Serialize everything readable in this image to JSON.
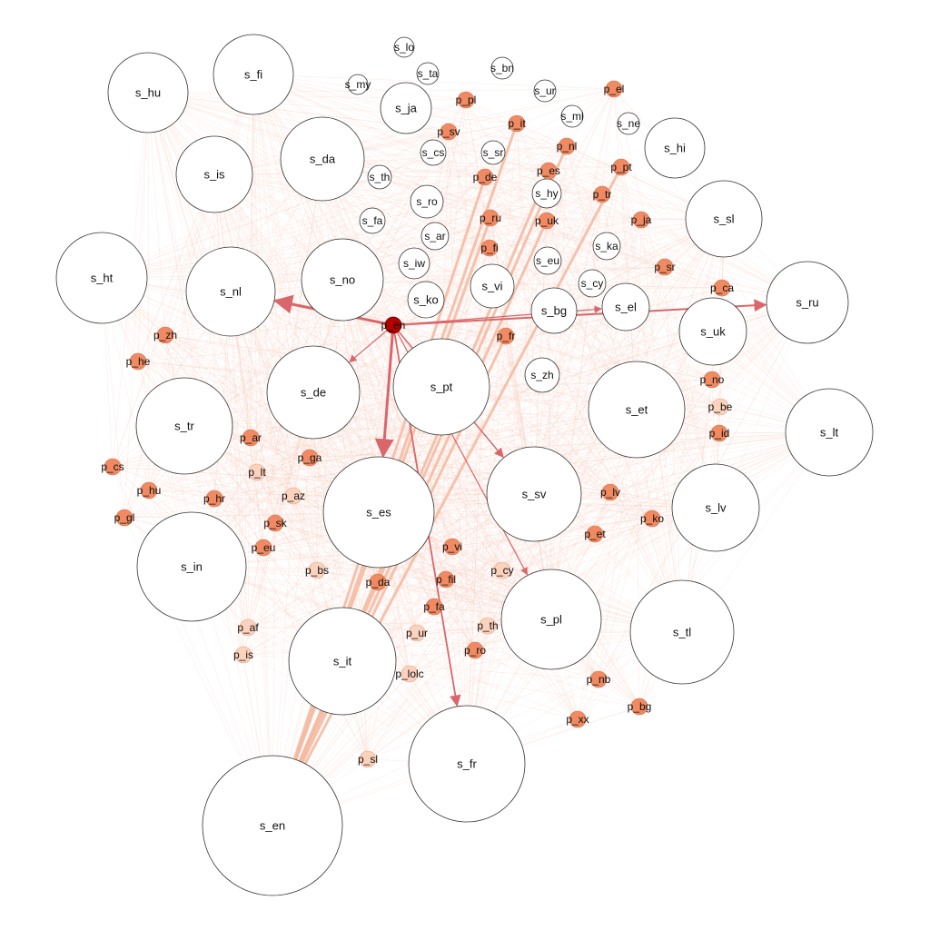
{
  "colors": {
    "background": "#ffffff",
    "s_fill": "#ffffff",
    "s_stroke": "#333333",
    "edge_faint": "#f6c3b1",
    "edge_strong": "#d9666b",
    "center_fill": "#b30000",
    "p_strong": "#ef8a62",
    "p_light": "#fbd2bd"
  },
  "nodes": [
    {
      "id": "s_en",
      "label": "s_en",
      "kind": "s"
    },
    {
      "id": "s_fr",
      "label": "s_fr",
      "kind": "s"
    },
    {
      "id": "s_it",
      "label": "s_it",
      "kind": "s"
    },
    {
      "id": "s_in",
      "label": "s_in",
      "kind": "s"
    },
    {
      "id": "s_es",
      "label": "s_es",
      "kind": "s"
    },
    {
      "id": "s_pl",
      "label": "s_pl",
      "kind": "s"
    },
    {
      "id": "s_tl",
      "label": "s_tl",
      "kind": "s"
    },
    {
      "id": "s_sv",
      "label": "s_sv",
      "kind": "s"
    },
    {
      "id": "s_lv",
      "label": "s_lv",
      "kind": "s"
    },
    {
      "id": "s_tr",
      "label": "s_tr",
      "kind": "s"
    },
    {
      "id": "s_de",
      "label": "s_de",
      "kind": "s"
    },
    {
      "id": "s_pt",
      "label": "s_pt",
      "kind": "s"
    },
    {
      "id": "s_et",
      "label": "s_et",
      "kind": "s"
    },
    {
      "id": "s_lt",
      "label": "s_lt",
      "kind": "s"
    },
    {
      "id": "s_ht",
      "label": "s_ht",
      "kind": "s"
    },
    {
      "id": "s_nl",
      "label": "s_nl",
      "kind": "s"
    },
    {
      "id": "s_no",
      "label": "s_no",
      "kind": "s"
    },
    {
      "id": "s_ru",
      "label": "s_ru",
      "kind": "s"
    },
    {
      "id": "s_uk",
      "label": "s_uk",
      "kind": "s"
    },
    {
      "id": "s_sl",
      "label": "s_sl",
      "kind": "s"
    },
    {
      "id": "s_hi",
      "label": "s_hi",
      "kind": "s"
    },
    {
      "id": "s_hu",
      "label": "s_hu",
      "kind": "s"
    },
    {
      "id": "s_fi",
      "label": "s_fi",
      "kind": "s"
    },
    {
      "id": "s_is",
      "label": "s_is",
      "kind": "s"
    },
    {
      "id": "s_da",
      "label": "s_da",
      "kind": "s"
    },
    {
      "id": "s_ja",
      "label": "s_ja",
      "kind": "s"
    },
    {
      "id": "s_vi",
      "label": "s_vi",
      "kind": "s"
    },
    {
      "id": "s_bg",
      "label": "s_bg",
      "kind": "s"
    },
    {
      "id": "s_el",
      "label": "s_el",
      "kind": "s"
    },
    {
      "id": "s_zh",
      "label": "s_zh",
      "kind": "s"
    },
    {
      "id": "s_ro",
      "label": "s_ro",
      "kind": "s"
    },
    {
      "id": "s_ar",
      "label": "s_ar",
      "kind": "s"
    },
    {
      "id": "s_iw",
      "label": "s_iw",
      "kind": "s"
    },
    {
      "id": "s_ko",
      "label": "s_ko",
      "kind": "s"
    },
    {
      "id": "s_fa",
      "label": "s_fa",
      "kind": "s"
    },
    {
      "id": "s_th",
      "label": "s_th",
      "kind": "s"
    },
    {
      "id": "s_cs",
      "label": "s_cs",
      "kind": "s"
    },
    {
      "id": "s_sr",
      "label": "s_sr",
      "kind": "s"
    },
    {
      "id": "s_hy",
      "label": "s_hy",
      "kind": "s"
    },
    {
      "id": "s_eu",
      "label": "s_eu",
      "kind": "s"
    },
    {
      "id": "s_ka",
      "label": "s_ka",
      "kind": "s"
    },
    {
      "id": "s_cy",
      "label": "s_cy",
      "kind": "s"
    },
    {
      "id": "s_lo",
      "label": "s_lo",
      "kind": "s"
    },
    {
      "id": "s_ta",
      "label": "s_ta",
      "kind": "s"
    },
    {
      "id": "s_bn",
      "label": "s_bn",
      "kind": "s"
    },
    {
      "id": "s_my",
      "label": "s_my",
      "kind": "s"
    },
    {
      "id": "s_ur",
      "label": "s_ur",
      "kind": "s"
    },
    {
      "id": "s_ml",
      "label": "s_ml",
      "kind": "s"
    },
    {
      "id": "s_ne",
      "label": "s_ne",
      "kind": "s"
    },
    {
      "id": "p_en",
      "label": "p_en",
      "kind": "center"
    },
    {
      "id": "p_pl",
      "label": "p_pl",
      "kind": "p"
    },
    {
      "id": "p_el",
      "label": "p_el",
      "kind": "p"
    },
    {
      "id": "p_sv",
      "label": "p_sv",
      "kind": "p"
    },
    {
      "id": "p_it",
      "label": "p_it",
      "kind": "p"
    },
    {
      "id": "p_nl",
      "label": "p_nl",
      "kind": "p"
    },
    {
      "id": "p_es",
      "label": "p_es",
      "kind": "p"
    },
    {
      "id": "p_de",
      "label": "p_de",
      "kind": "p"
    },
    {
      "id": "p_pt",
      "label": "p_pt",
      "kind": "p"
    },
    {
      "id": "p_tr",
      "label": "p_tr",
      "kind": "p"
    },
    {
      "id": "p_ru",
      "label": "p_ru",
      "kind": "p"
    },
    {
      "id": "p_uk",
      "label": "p_uk",
      "kind": "p"
    },
    {
      "id": "p_ja",
      "label": "p_ja",
      "kind": "p"
    },
    {
      "id": "p_fi",
      "label": "p_fi",
      "kind": "p"
    },
    {
      "id": "p_sr",
      "label": "p_sr",
      "kind": "p"
    },
    {
      "id": "p_ca",
      "label": "p_ca",
      "kind": "p"
    },
    {
      "id": "p_fr",
      "label": "p_fr",
      "kind": "p"
    },
    {
      "id": "p_zh",
      "label": "p_zh",
      "kind": "p"
    },
    {
      "id": "p_he",
      "label": "p_he",
      "kind": "p"
    },
    {
      "id": "p_no",
      "label": "p_no",
      "kind": "p"
    },
    {
      "id": "p_be",
      "label": "p_be",
      "kind": "pl"
    },
    {
      "id": "p_id",
      "label": "p_id",
      "kind": "p"
    },
    {
      "id": "p_ar",
      "label": "p_ar",
      "kind": "p"
    },
    {
      "id": "p_ga",
      "label": "p_ga",
      "kind": "p"
    },
    {
      "id": "p_cs",
      "label": "p_cs",
      "kind": "p"
    },
    {
      "id": "p_lt",
      "label": "p_lt",
      "kind": "pl"
    },
    {
      "id": "p_hu",
      "label": "p_hu",
      "kind": "p"
    },
    {
      "id": "p_hr",
      "label": "p_hr",
      "kind": "p"
    },
    {
      "id": "p_az",
      "label": "p_az",
      "kind": "pl"
    },
    {
      "id": "p_gl",
      "label": "p_gl",
      "kind": "p"
    },
    {
      "id": "p_sk",
      "label": "p_sk",
      "kind": "p"
    },
    {
      "id": "p_eu",
      "label": "p_eu",
      "kind": "p"
    },
    {
      "id": "p_bs",
      "label": "p_bs",
      "kind": "pl"
    },
    {
      "id": "p_vi",
      "label": "p_vi",
      "kind": "p"
    },
    {
      "id": "p_lv",
      "label": "p_lv",
      "kind": "p"
    },
    {
      "id": "p_ko",
      "label": "p_ko",
      "kind": "p"
    },
    {
      "id": "p_et",
      "label": "p_et",
      "kind": "p"
    },
    {
      "id": "p_da",
      "label": "p_da",
      "kind": "p"
    },
    {
      "id": "p_fil",
      "label": "p_fil",
      "kind": "p"
    },
    {
      "id": "p_cy",
      "label": "p_cy",
      "kind": "pl"
    },
    {
      "id": "p_fa",
      "label": "p_fa",
      "kind": "p"
    },
    {
      "id": "p_af",
      "label": "p_af",
      "kind": "pl"
    },
    {
      "id": "p_ur",
      "label": "p_ur",
      "kind": "pl"
    },
    {
      "id": "p_th",
      "label": "p_th",
      "kind": "pl"
    },
    {
      "id": "p_ro",
      "label": "p_ro",
      "kind": "p"
    },
    {
      "id": "p_is",
      "label": "p_is",
      "kind": "pl"
    },
    {
      "id": "p_lolc",
      "label": "p_lolc",
      "kind": "pl"
    },
    {
      "id": "p_nb",
      "label": "p_nb",
      "kind": "p"
    },
    {
      "id": "p_bg",
      "label": "p_bg",
      "kind": "p"
    },
    {
      "id": "p_xx",
      "label": "p_xx",
      "kind": "p"
    },
    {
      "id": "p_sl",
      "label": "p_sl",
      "kind": "pl"
    }
  ],
  "strong_edges": [
    {
      "source": "p_en",
      "target": "s_es"
    },
    {
      "source": "p_en",
      "target": "s_nl"
    },
    {
      "source": "p_en",
      "target": "s_ru"
    },
    {
      "source": "p_en",
      "target": "s_fr"
    },
    {
      "source": "p_en",
      "target": "s_sv"
    },
    {
      "source": "p_en",
      "target": "s_de"
    },
    {
      "source": "p_en",
      "target": "s_el"
    },
    {
      "source": "p_en",
      "target": "s_pl"
    }
  ],
  "thick_edges": [
    {
      "source": "p_it",
      "target": "s_en"
    },
    {
      "source": "p_de",
      "target": "s_en"
    },
    {
      "source": "p_es",
      "target": "s_en"
    },
    {
      "source": "p_nl",
      "target": "s_en"
    },
    {
      "source": "p_pt",
      "target": "s_en"
    },
    {
      "source": "p_fr",
      "target": "s_en"
    },
    {
      "source": "p_ru",
      "target": "s_en"
    },
    {
      "source": "p_uk",
      "target": "s_en"
    }
  ]
}
